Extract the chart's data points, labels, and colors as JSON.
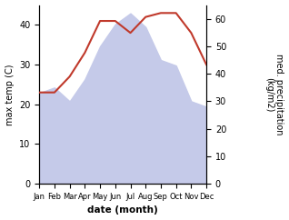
{
  "months": [
    "Jan",
    "Feb",
    "Mar",
    "Apr",
    "May",
    "Jun",
    "Jul",
    "Aug",
    "Sep",
    "Oct",
    "Nov",
    "Dec"
  ],
  "temperature": [
    23,
    23,
    27,
    33,
    41,
    41,
    38,
    42,
    43,
    43,
    38,
    30
  ],
  "rainfall": [
    33,
    35,
    30,
    38,
    50,
    58,
    62,
    57,
    45,
    43,
    30,
    28
  ],
  "temp_color": "#c0392b",
  "rain_color_fill": "#c5cae9",
  "xlabel": "date (month)",
  "ylabel_left": "max temp (C)",
  "ylabel_right": "med. precipitation\n(kg/m2)",
  "ylim_left": [
    0,
    45
  ],
  "ylim_right": [
    0,
    65
  ],
  "yticks_left": [
    0,
    10,
    20,
    30,
    40
  ],
  "yticks_right": [
    0,
    10,
    20,
    30,
    40,
    50,
    60
  ]
}
